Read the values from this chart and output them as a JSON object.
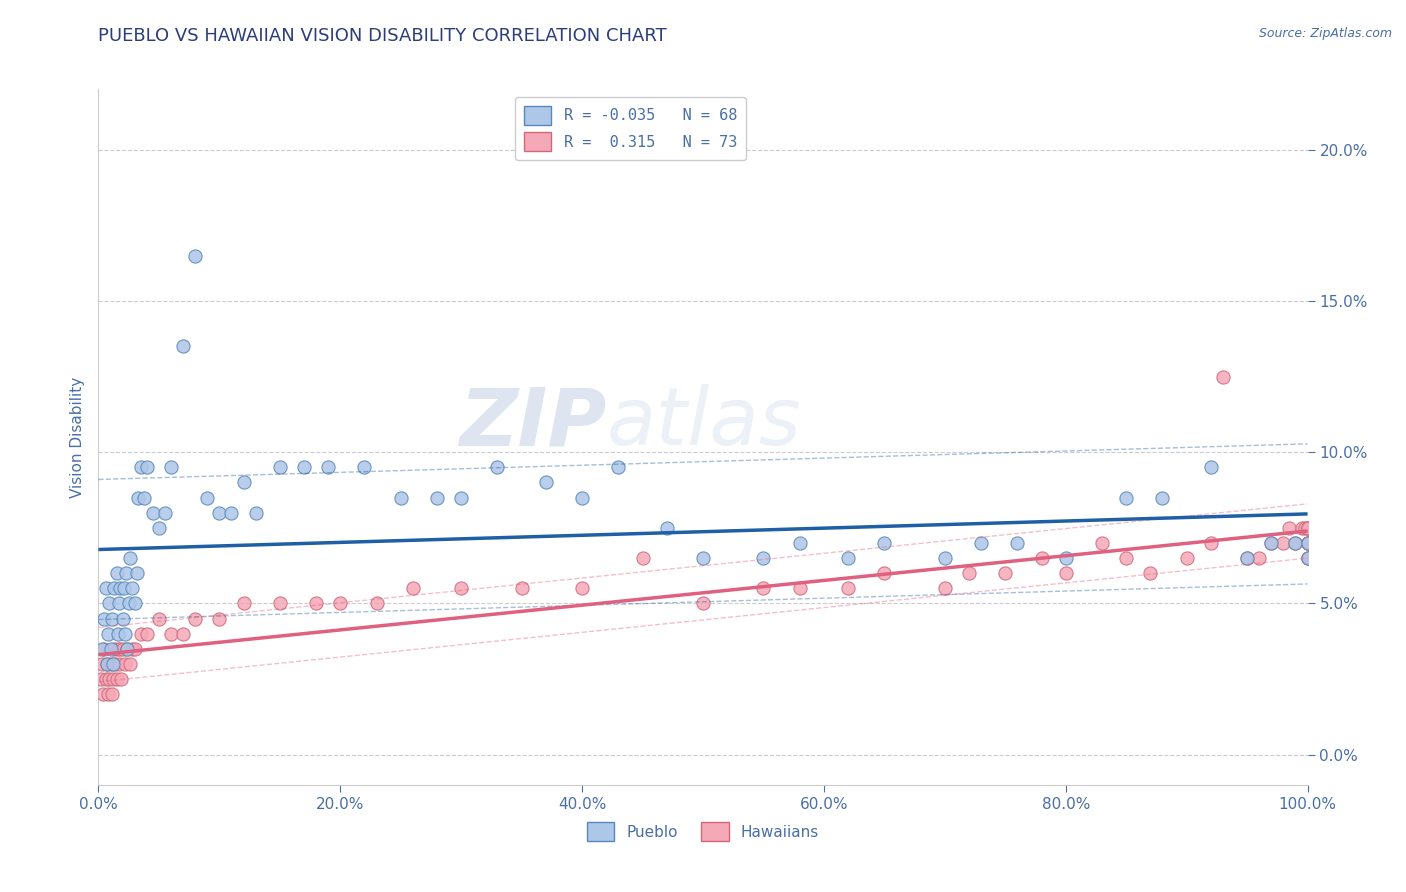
{
  "title": "PUEBLO VS HAWAIIAN VISION DISABILITY CORRELATION CHART",
  "source": "Source: ZipAtlas.com",
  "ylabel": "Vision Disability",
  "xlim": [
    0,
    100
  ],
  "ylim": [
    -1,
    22
  ],
  "xticks": [
    0,
    20,
    40,
    60,
    80,
    100
  ],
  "xticklabels": [
    "0.0%",
    "20.0%",
    "40.0%",
    "60.0%",
    "80.0%",
    "100.0%"
  ],
  "yticks": [
    0,
    5,
    10,
    15,
    20
  ],
  "yticklabels": [
    "0.0%",
    "5.0%",
    "10.0%",
    "15.0%",
    "20.0%"
  ],
  "pueblo_R": -0.035,
  "pueblo_N": 68,
  "hawaiian_R": 0.315,
  "hawaiian_N": 73,
  "pueblo_color": "#aec6e8",
  "hawaiian_color": "#f5a8b8",
  "pueblo_line_color": "#1f5fa6",
  "hawaiian_line_color": "#e06080",
  "grid_color": "#cccccc",
  "title_color": "#2c3e7a",
  "axis_color": "#4a6fa5",
  "background_color": "#ffffff",
  "watermark_zip": "ZIP",
  "watermark_atlas": "atlas",
  "pueblo_x": [
    0.3,
    0.5,
    0.6,
    0.7,
    0.8,
    0.9,
    1.0,
    1.1,
    1.2,
    1.3,
    1.5,
    1.6,
    1.7,
    1.8,
    2.0,
    2.1,
    2.2,
    2.3,
    2.4,
    2.5,
    2.6,
    2.8,
    3.0,
    3.2,
    3.3,
    3.5,
    3.8,
    4.0,
    4.5,
    5.0,
    5.5,
    6.0,
    7.0,
    8.0,
    9.0,
    10.0,
    11.0,
    12.0,
    13.0,
    15.0,
    17.0,
    19.0,
    22.0,
    25.0,
    28.0,
    30.0,
    33.0,
    37.0,
    40.0,
    43.0,
    47.0,
    50.0,
    55.0,
    58.0,
    62.0,
    65.0,
    70.0,
    73.0,
    76.0,
    80.0,
    85.0,
    88.0,
    92.0,
    95.0,
    97.0,
    99.0,
    100.0,
    100.0
  ],
  "pueblo_y": [
    3.5,
    4.5,
    5.5,
    3.0,
    4.0,
    5.0,
    3.5,
    4.5,
    3.0,
    5.5,
    6.0,
    4.0,
    5.0,
    5.5,
    4.5,
    5.5,
    4.0,
    6.0,
    3.5,
    5.0,
    6.5,
    5.5,
    5.0,
    6.0,
    8.5,
    9.5,
    8.5,
    9.5,
    8.0,
    7.5,
    8.0,
    9.5,
    13.5,
    16.5,
    8.5,
    8.0,
    8.0,
    9.0,
    8.0,
    9.5,
    9.5,
    9.5,
    9.5,
    8.5,
    8.5,
    8.5,
    9.5,
    9.0,
    8.5,
    9.5,
    7.5,
    6.5,
    6.5,
    7.0,
    6.5,
    7.0,
    6.5,
    7.0,
    7.0,
    6.5,
    8.5,
    8.5,
    9.5,
    6.5,
    7.0,
    7.0,
    7.0,
    6.5
  ],
  "hawaiian_x": [
    0.2,
    0.3,
    0.4,
    0.5,
    0.6,
    0.7,
    0.8,
    0.9,
    1.0,
    1.1,
    1.2,
    1.3,
    1.4,
    1.5,
    1.6,
    1.7,
    1.8,
    1.9,
    2.0,
    2.2,
    2.4,
    2.6,
    2.8,
    3.0,
    3.5,
    4.0,
    5.0,
    6.0,
    7.0,
    8.0,
    10.0,
    12.0,
    15.0,
    18.0,
    20.0,
    23.0,
    26.0,
    30.0,
    35.0,
    40.0,
    45.0,
    50.0,
    55.0,
    58.0,
    62.0,
    65.0,
    70.0,
    72.0,
    75.0,
    78.0,
    80.0,
    83.0,
    85.0,
    87.0,
    90.0,
    92.0,
    93.0,
    95.0,
    96.0,
    97.0,
    98.0,
    98.5,
    99.0,
    99.5,
    99.8,
    100.0,
    100.0,
    100.0,
    100.0,
    100.0,
    100.0,
    100.0,
    100.0
  ],
  "hawaiian_y": [
    2.5,
    3.0,
    2.0,
    3.5,
    2.5,
    3.0,
    2.0,
    2.5,
    3.0,
    2.0,
    2.5,
    3.5,
    3.0,
    2.5,
    3.5,
    3.0,
    3.5,
    2.5,
    3.5,
    3.0,
    3.5,
    3.0,
    3.5,
    3.5,
    4.0,
    4.0,
    4.5,
    4.0,
    4.0,
    4.5,
    4.5,
    5.0,
    5.0,
    5.0,
    5.0,
    5.0,
    5.5,
    5.5,
    5.5,
    5.5,
    6.5,
    5.0,
    5.5,
    5.5,
    5.5,
    6.0,
    5.5,
    6.0,
    6.0,
    6.5,
    6.0,
    7.0,
    6.5,
    6.0,
    6.5,
    7.0,
    12.5,
    6.5,
    6.5,
    7.0,
    7.0,
    7.5,
    7.0,
    7.5,
    7.5,
    7.0,
    7.5,
    6.5,
    7.0,
    7.5,
    7.0,
    6.5,
    7.5
  ]
}
